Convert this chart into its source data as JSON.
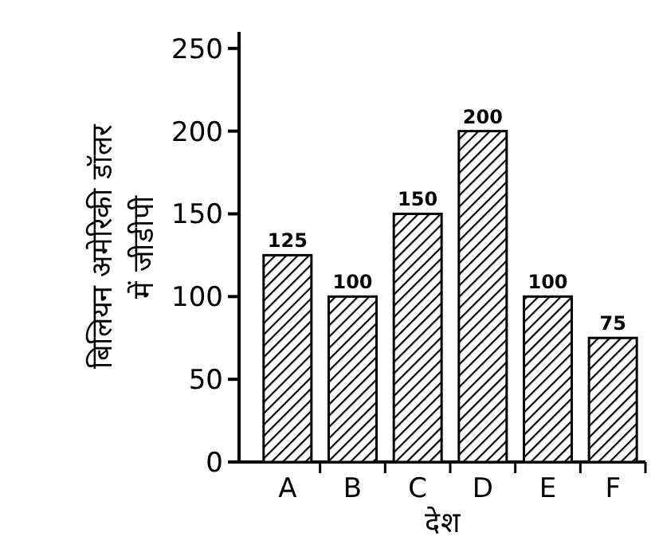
{
  "chart_data": {
    "type": "bar",
    "xlabel": "देश",
    "ylabel": "बिलियन अमेरिकी डॉलर में जीडीपी",
    "categories": [
      "A",
      "B",
      "C",
      "D",
      "E",
      "F"
    ],
    "values": [
      125,
      100,
      150,
      200,
      100,
      75
    ],
    "ylim": [
      0,
      260
    ],
    "yticks": [
      0,
      50,
      100,
      150,
      200,
      250
    ],
    "data_labels": true
  }
}
